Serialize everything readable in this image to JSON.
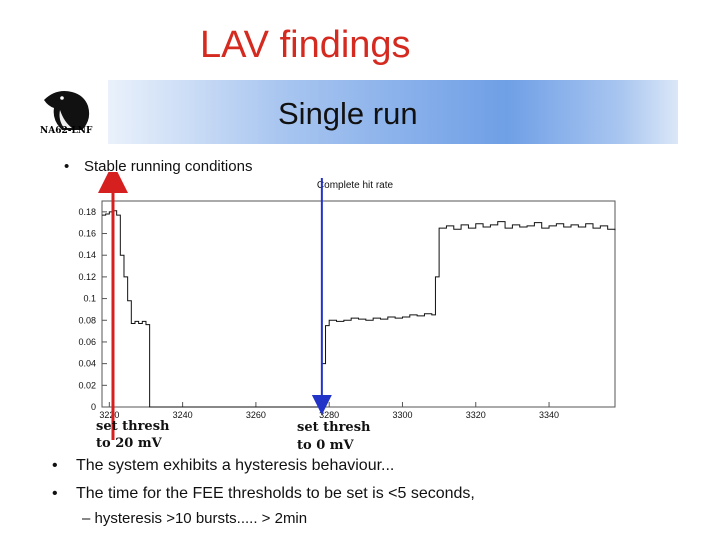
{
  "slide_title": "LAV findings",
  "logo_text": "NA62-LNF",
  "banner_title": "Single run",
  "bullet_top": "Stable running conditions",
  "bullets": [
    "The system exhibits a hysteresis behaviour...",
    "The time for the FEE thresholds to be set is <5 seconds,"
  ],
  "sub_bullet": "hysteresis >10 bursts..... > 2min",
  "sub_marker": "–",
  "bullet_marker": "•",
  "colors": {
    "title": "#d42a1f",
    "red_arrow": "#d61f1f",
    "blue_arrow": "#2233c8"
  },
  "annotations": {
    "red_line1": "set thresh",
    "red_line2": "to 20 mV",
    "blue_line1": "set thresh",
    "blue_line2": "to 0 mV"
  },
  "chart_data": {
    "type": "line",
    "title": "Complete hit rate",
    "xlabel": "",
    "ylabel": "",
    "xlim": [
      3218,
      3358
    ],
    "ylim": [
      0,
      0.19
    ],
    "xticks": [
      "3220",
      "3240",
      "3260",
      "3280",
      "3300",
      "3320",
      "3340"
    ],
    "yticks": [
      "0",
      "0.02",
      "0.04",
      "0.06",
      "0.08",
      "0.1",
      "0.12",
      "0.14",
      "0.16",
      "0.18"
    ],
    "series": [
      {
        "x": [
          3218,
          3219,
          3220,
          3221,
          3222,
          3223,
          3224,
          3225,
          3226,
          3227,
          3228,
          3229,
          3230,
          3231,
          3277,
          3278,
          3279,
          3280,
          3282,
          3284,
          3286,
          3288,
          3290,
          3292,
          3294,
          3296,
          3298,
          3300,
          3302,
          3304,
          3306,
          3308,
          3309,
          3310,
          3312,
          3314,
          3316,
          3318,
          3320,
          3322,
          3324,
          3326,
          3328,
          3330,
          3332,
          3334,
          3336,
          3338,
          3340,
          3342,
          3344,
          3346,
          3348,
          3350,
          3352,
          3354,
          3356,
          3358
        ],
        "y": [
          0.177,
          0.178,
          0.18,
          0.181,
          0.177,
          0.14,
          0.12,
          0.098,
          0.077,
          0.079,
          0.077,
          0.079,
          0.076,
          0,
          0,
          0.04,
          0.075,
          0.08,
          0.079,
          0.08,
          0.082,
          0.081,
          0.08,
          0.082,
          0.081,
          0.083,
          0.082,
          0.083,
          0.085,
          0.084,
          0.086,
          0.085,
          0.12,
          0.165,
          0.167,
          0.164,
          0.168,
          0.165,
          0.169,
          0.166,
          0.168,
          0.171,
          0.165,
          0.168,
          0.166,
          0.167,
          0.17,
          0.165,
          0.167,
          0.169,
          0.166,
          0.168,
          0.166,
          0.169,
          0.165,
          0.167,
          0.164,
          0.163
        ]
      }
    ],
    "markers": [
      {
        "x": 3221,
        "color": "red"
      },
      {
        "x": 3278,
        "color": "blue"
      }
    ],
    "grid": true
  }
}
